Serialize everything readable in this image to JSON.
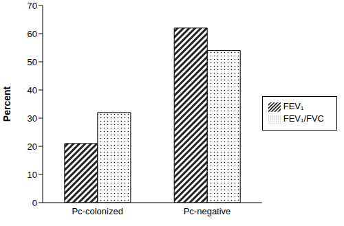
{
  "chart_data": {
    "type": "bar",
    "y_label": "Percent",
    "categories": [
      "Pc-colonized",
      "Pc-negative"
    ],
    "series": [
      {
        "name": "FEV₁",
        "color": "#222222",
        "values": [
          21,
          62
        ]
      },
      {
        "name": "FEV₁/FVC",
        "color": "#000000",
        "values": [
          32,
          54
        ]
      }
    ],
    "ylim": [
      0,
      70
    ],
    "yticks": [
      0,
      10,
      20,
      30,
      40,
      50,
      60,
      70
    ],
    "grid": false,
    "legend": "right"
  }
}
